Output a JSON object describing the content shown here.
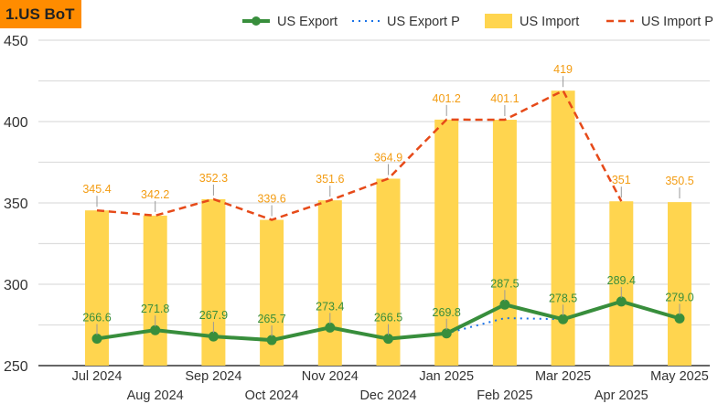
{
  "chart_data": {
    "type": "bar",
    "title": "1.US BoT",
    "categories": [
      "Jul 2024",
      "Aug 2024",
      "Sep 2024",
      "Oct 2024",
      "Nov 2024",
      "Dec 2024",
      "Jan 2025",
      "Feb 2025",
      "Mar 2025",
      "Apr 2025",
      "May 2025"
    ],
    "ylim": [
      250,
      450
    ],
    "yticks": [
      250,
      300,
      350,
      400,
      450
    ],
    "minor_grid_step": 25,
    "grid": true,
    "legend_position": "top",
    "series": [
      {
        "name": "US Export",
        "kind": "line",
        "color": "#388e3c",
        "values": [
          266.6,
          271.8,
          267.9,
          265.7,
          273.4,
          266.5,
          269.8,
          287.5,
          278.5,
          289.4,
          279.0
        ],
        "labels": [
          "266.6",
          "271.8",
          "267.9",
          "265.7",
          "273.4",
          "266.5",
          "269.8",
          "287.5",
          "278.5",
          "289.4",
          "279.0"
        ]
      },
      {
        "name": "US Export P",
        "kind": "dotted",
        "color": "#1a73e8",
        "values": [
          266.6,
          271.8,
          267.9,
          265.7,
          273.4,
          266.5,
          269.8,
          279.2,
          278.5,
          289.4,
          null
        ]
      },
      {
        "name": "US Import",
        "kind": "bar",
        "color": "#ffd54f",
        "label_color": "#f39c12",
        "values": [
          345.4,
          342.2,
          352.3,
          339.6,
          351.6,
          364.9,
          401.2,
          401.1,
          419,
          351,
          350.5
        ],
        "labels": [
          "345.4",
          "342.2",
          "352.3",
          "339.6",
          "351.6",
          "364.9",
          "401.2",
          "401.1",
          "419",
          "351",
          "350.5"
        ]
      },
      {
        "name": "US Import P",
        "kind": "dashed",
        "color": "#e64a19",
        "values": [
          345.4,
          342.2,
          352.3,
          339.6,
          351.6,
          364.9,
          401.2,
          401.1,
          419,
          351,
          null
        ]
      }
    ]
  }
}
